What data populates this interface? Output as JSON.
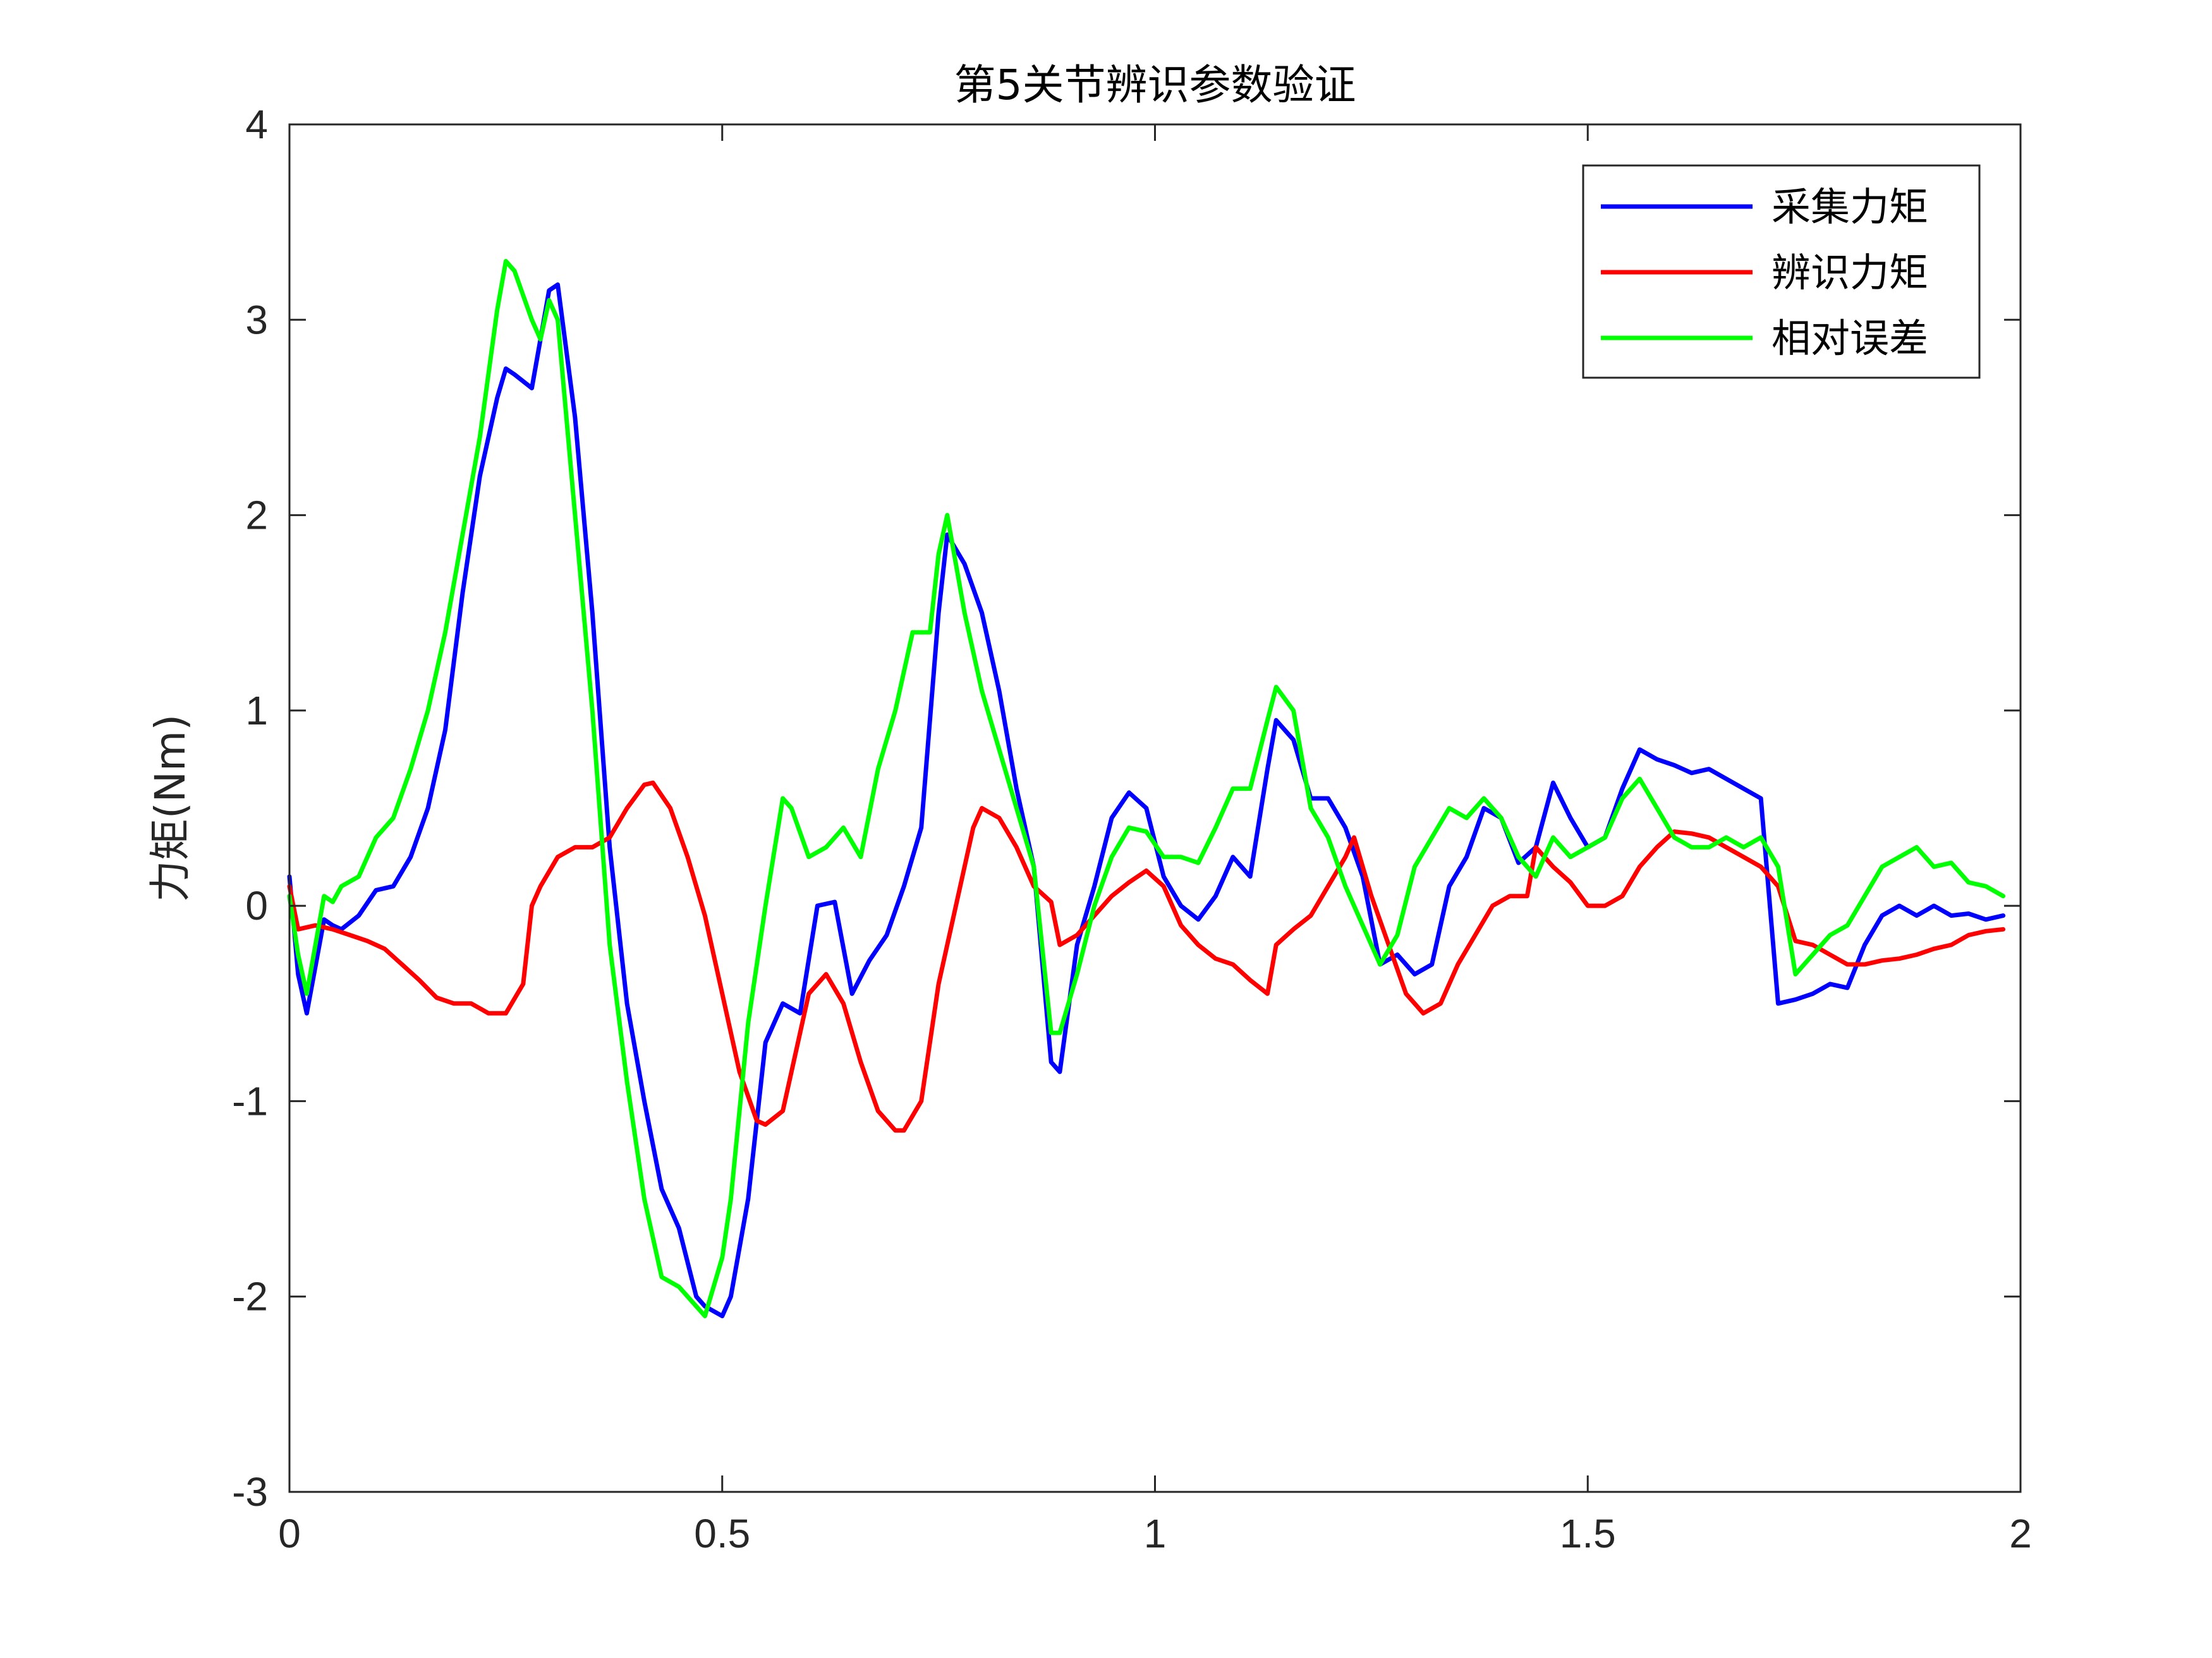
{
  "chart_data": {
    "type": "line",
    "title": "第5关节辨识参数验证",
    "xlabel": "",
    "ylabel": "力矩(Nm)",
    "xlim": [
      0,
      2
    ],
    "ylim": [
      -3,
      4
    ],
    "xticks": [
      0,
      0.5,
      1,
      1.5,
      2
    ],
    "xtick_labels": [
      "0",
      "0.5",
      "1",
      "1.5",
      "2"
    ],
    "yticks": [
      -3,
      -2,
      -1,
      0,
      1,
      2,
      3,
      4
    ],
    "ytick_labels": [
      "-3",
      "-2",
      "-1",
      "0",
      "1",
      "2",
      "3",
      "4"
    ],
    "grid": false,
    "legend_position": "top-right",
    "series": [
      {
        "name": "采集力矩",
        "color": "#0000ff",
        "x": [
          0,
          0.01,
          0.02,
          0.04,
          0.05,
          0.06,
          0.08,
          0.1,
          0.12,
          0.14,
          0.16,
          0.18,
          0.2,
          0.22,
          0.24,
          0.25,
          0.26,
          0.28,
          0.3,
          0.31,
          0.33,
          0.35,
          0.37,
          0.39,
          0.41,
          0.43,
          0.45,
          0.47,
          0.48,
          0.5,
          0.51,
          0.53,
          0.55,
          0.57,
          0.59,
          0.61,
          0.63,
          0.65,
          0.67,
          0.69,
          0.71,
          0.73,
          0.75,
          0.76,
          0.78,
          0.8,
          0.82,
          0.84,
          0.86,
          0.88,
          0.89,
          0.91,
          0.93,
          0.95,
          0.97,
          0.99,
          1.01,
          1.03,
          1.05,
          1.07,
          1.09,
          1.11,
          1.13,
          1.14,
          1.16,
          1.18,
          1.2,
          1.22,
          1.24,
          1.26,
          1.28,
          1.3,
          1.32,
          1.34,
          1.36,
          1.38,
          1.4,
          1.42,
          1.44,
          1.46,
          1.48,
          1.5,
          1.52,
          1.54,
          1.56,
          1.58,
          1.6,
          1.62,
          1.64,
          1.66,
          1.68,
          1.7,
          1.72,
          1.74,
          1.76,
          1.78,
          1.8,
          1.82,
          1.84,
          1.86,
          1.88,
          1.9,
          1.92,
          1.94,
          1.96,
          1.98
        ],
        "y": [
          0.15,
          -0.35,
          -0.55,
          -0.07,
          -0.1,
          -0.12,
          -0.05,
          0.08,
          0.1,
          0.25,
          0.5,
          0.9,
          1.6,
          2.2,
          2.6,
          2.75,
          2.72,
          2.65,
          3.15,
          3.18,
          2.5,
          1.5,
          0.3,
          -0.5,
          -1.0,
          -1.45,
          -1.65,
          -2.0,
          -2.05,
          -2.1,
          -2.0,
          -1.5,
          -0.7,
          -0.5,
          -0.55,
          0.0,
          0.02,
          -0.45,
          -0.28,
          -0.15,
          0.1,
          0.4,
          1.5,
          1.9,
          1.75,
          1.5,
          1.1,
          0.6,
          0.2,
          -0.8,
          -0.85,
          -0.2,
          0.1,
          0.45,
          0.58,
          0.5,
          0.15,
          0.0,
          -0.07,
          0.05,
          0.25,
          0.15,
          0.7,
          0.95,
          0.85,
          0.55,
          0.55,
          0.4,
          0.15,
          -0.3,
          -0.25,
          -0.35,
          -0.3,
          0.1,
          0.25,
          0.5,
          0.45,
          0.22,
          0.3,
          0.63,
          0.45,
          0.3,
          0.35,
          0.6,
          0.8,
          0.75,
          0.72,
          0.68,
          0.7,
          0.65,
          0.6,
          0.55,
          -0.5,
          -0.48,
          -0.45,
          -0.4,
          -0.42,
          -0.2,
          -0.05,
          0.0,
          -0.05,
          0.0,
          -0.05,
          -0.04,
          -0.07,
          -0.05
        ]
      },
      {
        "name": "辨识力矩",
        "color": "#ff0000",
        "x": [
          0,
          0.01,
          0.03,
          0.05,
          0.07,
          0.09,
          0.11,
          0.13,
          0.15,
          0.17,
          0.19,
          0.21,
          0.23,
          0.25,
          0.27,
          0.28,
          0.29,
          0.31,
          0.33,
          0.35,
          0.37,
          0.39,
          0.41,
          0.42,
          0.44,
          0.46,
          0.48,
          0.5,
          0.52,
          0.54,
          0.55,
          0.57,
          0.58,
          0.6,
          0.62,
          0.64,
          0.66,
          0.68,
          0.7,
          0.71,
          0.73,
          0.75,
          0.77,
          0.79,
          0.8,
          0.82,
          0.84,
          0.86,
          0.88,
          0.89,
          0.91,
          0.93,
          0.95,
          0.97,
          0.99,
          1.01,
          1.03,
          1.05,
          1.07,
          1.09,
          1.11,
          1.13,
          1.14,
          1.16,
          1.18,
          1.2,
          1.22,
          1.23,
          1.25,
          1.27,
          1.29,
          1.31,
          1.33,
          1.35,
          1.37,
          1.39,
          1.41,
          1.43,
          1.44,
          1.46,
          1.48,
          1.5,
          1.52,
          1.54,
          1.56,
          1.58,
          1.6,
          1.62,
          1.64,
          1.66,
          1.68,
          1.7,
          1.72,
          1.74,
          1.76,
          1.78,
          1.8,
          1.82,
          1.84,
          1.86,
          1.88,
          1.9,
          1.92,
          1.94,
          1.96,
          1.98
        ],
        "y": [
          0.1,
          -0.12,
          -0.1,
          -0.12,
          -0.15,
          -0.18,
          -0.22,
          -0.3,
          -0.38,
          -0.47,
          -0.5,
          -0.5,
          -0.55,
          -0.55,
          -0.4,
          0.0,
          0.1,
          0.25,
          0.3,
          0.3,
          0.35,
          0.5,
          0.62,
          0.63,
          0.5,
          0.25,
          -0.05,
          -0.45,
          -0.85,
          -1.1,
          -1.12,
          -1.05,
          -0.85,
          -0.45,
          -0.35,
          -0.5,
          -0.8,
          -1.05,
          -1.15,
          -1.15,
          -1.0,
          -0.4,
          0.0,
          0.4,
          0.5,
          0.45,
          0.3,
          0.1,
          0.02,
          -0.2,
          -0.15,
          -0.05,
          0.05,
          0.12,
          0.18,
          0.1,
          -0.1,
          -0.2,
          -0.27,
          -0.3,
          -0.38,
          -0.45,
          -0.2,
          -0.12,
          -0.05,
          0.1,
          0.25,
          0.35,
          0.05,
          -0.2,
          -0.45,
          -0.55,
          -0.5,
          -0.3,
          -0.15,
          0.0,
          0.05,
          0.05,
          0.3,
          0.2,
          0.12,
          0.0,
          0.0,
          0.05,
          0.2,
          0.3,
          0.38,
          0.37,
          0.35,
          0.3,
          0.25,
          0.2,
          0.1,
          -0.18,
          -0.2,
          -0.25,
          -0.3,
          -0.3,
          -0.28,
          -0.27,
          -0.25,
          -0.22,
          -0.2,
          -0.15,
          -0.13,
          -0.12
        ]
      },
      {
        "name": "相对误差",
        "color": "#00ff00",
        "x": [
          0,
          0.01,
          0.02,
          0.04,
          0.05,
          0.06,
          0.08,
          0.1,
          0.12,
          0.14,
          0.16,
          0.18,
          0.2,
          0.22,
          0.24,
          0.25,
          0.26,
          0.28,
          0.29,
          0.3,
          0.31,
          0.33,
          0.35,
          0.37,
          0.39,
          0.41,
          0.43,
          0.45,
          0.47,
          0.48,
          0.5,
          0.51,
          0.53,
          0.55,
          0.57,
          0.58,
          0.6,
          0.62,
          0.64,
          0.66,
          0.68,
          0.7,
          0.72,
          0.74,
          0.75,
          0.76,
          0.78,
          0.8,
          0.82,
          0.84,
          0.86,
          0.88,
          0.89,
          0.91,
          0.93,
          0.95,
          0.97,
          0.99,
          1.01,
          1.03,
          1.05,
          1.07,
          1.09,
          1.11,
          1.13,
          1.14,
          1.16,
          1.18,
          1.2,
          1.22,
          1.24,
          1.26,
          1.28,
          1.3,
          1.32,
          1.34,
          1.36,
          1.38,
          1.4,
          1.42,
          1.44,
          1.46,
          1.48,
          1.5,
          1.52,
          1.54,
          1.56,
          1.58,
          1.6,
          1.62,
          1.64,
          1.66,
          1.68,
          1.7,
          1.72,
          1.74,
          1.76,
          1.78,
          1.8,
          1.82,
          1.84,
          1.86,
          1.88,
          1.9,
          1.92,
          1.94,
          1.96,
          1.98
        ],
        "y": [
          0.05,
          -0.25,
          -0.45,
          0.05,
          0.02,
          0.1,
          0.15,
          0.35,
          0.45,
          0.7,
          1.0,
          1.4,
          1.9,
          2.4,
          3.05,
          3.3,
          3.25,
          3.0,
          2.9,
          3.1,
          3.0,
          2.0,
          1.0,
          -0.2,
          -0.9,
          -1.5,
          -1.9,
          -1.95,
          -2.05,
          -2.1,
          -1.8,
          -1.5,
          -0.6,
          0.0,
          0.55,
          0.5,
          0.25,
          0.3,
          0.4,
          0.25,
          0.7,
          1.0,
          1.4,
          1.4,
          1.8,
          2.0,
          1.5,
          1.1,
          0.8,
          0.5,
          0.2,
          -0.65,
          -0.65,
          -0.35,
          0.0,
          0.25,
          0.4,
          0.38,
          0.25,
          0.25,
          0.22,
          0.4,
          0.6,
          0.6,
          0.95,
          1.12,
          1.0,
          0.5,
          0.35,
          0.1,
          -0.1,
          -0.3,
          -0.15,
          0.2,
          0.35,
          0.5,
          0.45,
          0.55,
          0.45,
          0.25,
          0.15,
          0.35,
          0.25,
          0.3,
          0.35,
          0.55,
          0.65,
          0.5,
          0.35,
          0.3,
          0.3,
          0.35,
          0.3,
          0.35,
          0.2,
          -0.35,
          -0.25,
          -0.15,
          -0.1,
          0.05,
          0.2,
          0.25,
          0.3,
          0.2,
          0.22,
          0.12,
          0.1,
          0.05
        ]
      }
    ]
  }
}
